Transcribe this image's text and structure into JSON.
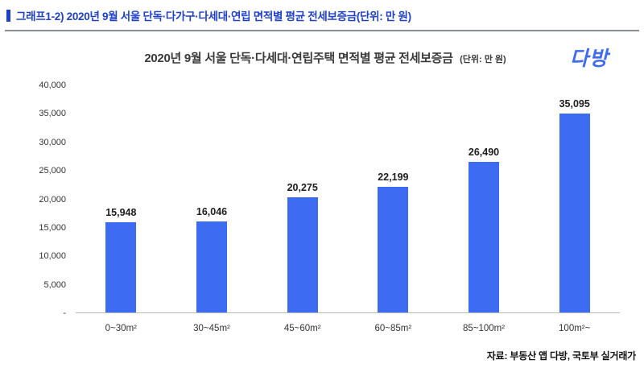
{
  "page": {
    "header_title": "그래프1-2) 2020년 9월 서울 단독·다가구·다세대·연립 면적별 평균 전세보증금(단위: 만 원)",
    "logo_text": "다방",
    "source_note": "자료: 부동산 앱 다방, 국토부 실거래가"
  },
  "chart": {
    "title": "2020년 9월 서울 단독·다세대·연립주택 면적별 평균 전세보증금",
    "unit_label": "(단위: 만 원)"
  },
  "chart_data": {
    "type": "bar",
    "title": "2020년 9월 서울 단독·다세대·연립주택 면적별 평균 전세보증금",
    "unit": "만 원",
    "categories": [
      "0~30m²",
      "30~45m²",
      "45~60m²",
      "60~85m²",
      "85~100m²",
      "100m²~"
    ],
    "values": [
      15948,
      16046,
      20275,
      22199,
      26490,
      35095
    ],
    "value_labels": [
      "15,948",
      "16,046",
      "20,275",
      "22,199",
      "26,490",
      "35,095"
    ],
    "xlabel": "",
    "ylabel": "",
    "ylim": [
      0,
      40000
    ],
    "ytick_labels": [
      "40,000",
      "35,000",
      "30,000",
      "25,000",
      "20,000",
      "15,000",
      "10,000",
      "5,000",
      "-"
    ],
    "bar_color": "#3d6bf2",
    "grid": false,
    "legend": "none"
  }
}
